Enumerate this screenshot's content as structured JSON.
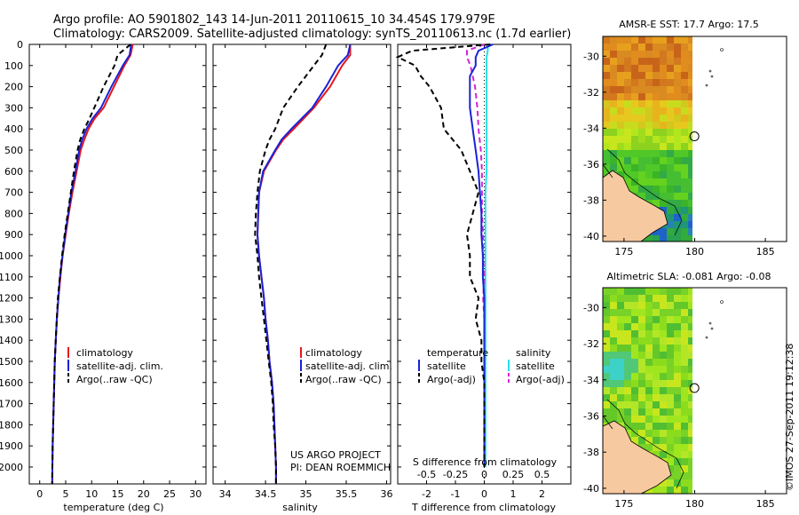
{
  "header": {
    "line1": "Argo profile: AO 5901802_143 14-Jun-2011 20110615_10 34.454S 179.979E",
    "line2": "Climatology: CARS2009. Satellite-adjusted climatology: synTS_20110613.nc (1.7d earlier)"
  },
  "colors": {
    "climatology": "#e8141c",
    "satellite": "#1a22d6",
    "argo": "#000000",
    "sal_satellite": "#22e0e8",
    "sal_argo": "#d424d4"
  },
  "credits": {
    "project": "US ARGO PROJECT",
    "pi": "PI: DEAN ROEMMICH",
    "stamp": "©IMOS 27-Sep-2011 19:12:38"
  },
  "legend1": [
    "climatology",
    "satellite-adj. clim.",
    "Argo(..raw -QC)"
  ],
  "legend3": {
    "temp_head": "temperature",
    "sal_head": "salinity",
    "satellite": "satellite",
    "argo": "Argo(-adj)"
  },
  "chart_data": [
    {
      "type": "line",
      "xlabel": "temperature (deg C)",
      "xticks": [
        "0",
        "5",
        "10",
        "15",
        "20",
        "25",
        "30"
      ],
      "xlim": [
        -2,
        32
      ],
      "ylim": [
        2080,
        0
      ],
      "yticks": [
        "0",
        "100",
        "200",
        "300",
        "400",
        "500",
        "600",
        "700",
        "800",
        "900",
        "1000",
        "1100",
        "1200",
        "1300",
        "1400",
        "1500",
        "1600",
        "1700",
        "1800",
        "1900",
        "2000"
      ],
      "depth": [
        0,
        50,
        100,
        200,
        300,
        350,
        400,
        450,
        500,
        600,
        700,
        800,
        900,
        1000,
        1100,
        1200,
        1300,
        1400,
        1500,
        1600,
        1700,
        1800,
        1900,
        2000,
        2080
      ],
      "series": [
        {
          "name": "climatology",
          "values": [
            17.9,
            17.5,
            16.3,
            14.3,
            12.3,
            10.6,
            9.4,
            8.6,
            7.9,
            7.1,
            6.3,
            5.6,
            5.0,
            4.4,
            4.0,
            3.6,
            3.3,
            3.1,
            2.9,
            2.8,
            2.7,
            2.6,
            2.5,
            2.45,
            2.4
          ]
        },
        {
          "name": "satellite-adj. clim.",
          "values": [
            17.6,
            17.3,
            16.0,
            13.8,
            11.8,
            10.2,
            9.0,
            8.2,
            7.6,
            6.9,
            6.1,
            5.5,
            4.9,
            4.4,
            3.9,
            3.6,
            3.3,
            3.1,
            2.9,
            2.8,
            2.7,
            2.6,
            2.5,
            2.45,
            2.4
          ]
        },
        {
          "name": "Argo(..raw -QC)",
          "values": [
            17.5,
            15.0,
            14.4,
            12.3,
            10.5,
            9.6,
            8.6,
            7.8,
            7.3,
            6.6,
            6.0,
            5.4,
            4.8,
            4.3,
            3.9,
            3.5,
            3.3,
            3.1,
            2.9,
            2.8,
            2.7,
            2.6,
            2.5,
            2.45,
            2.4
          ]
        }
      ]
    },
    {
      "type": "line",
      "xlabel": "salinity",
      "xticks": [
        "34",
        "34.5",
        "35",
        "35.5",
        "36"
      ],
      "xlim": [
        33.85,
        36.05
      ],
      "ylim": [
        2080,
        0
      ],
      "depth": [
        0,
        50,
        100,
        200,
        300,
        400,
        450,
        500,
        600,
        700,
        800,
        900,
        1000,
        1100,
        1200,
        1300,
        1400,
        1500,
        1600,
        1700,
        1800,
        1900,
        2000,
        2080
      ],
      "series": [
        {
          "name": "climatology",
          "values": [
            35.55,
            35.55,
            35.45,
            35.3,
            35.1,
            34.85,
            34.72,
            34.63,
            34.48,
            34.42,
            34.41,
            34.4,
            34.42,
            34.45,
            34.48,
            34.5,
            34.53,
            34.55,
            34.58,
            34.6,
            34.61,
            34.62,
            34.63,
            34.63
          ]
        },
        {
          "name": "satellite-adj. clim.",
          "values": [
            35.55,
            35.52,
            35.4,
            35.25,
            35.08,
            34.82,
            34.7,
            34.62,
            34.47,
            34.42,
            34.41,
            34.4,
            34.42,
            34.45,
            34.48,
            34.5,
            34.53,
            34.55,
            34.58,
            34.6,
            34.61,
            34.62,
            34.63,
            34.63
          ]
        },
        {
          "name": "Argo(..raw -QC)",
          "values": [
            35.25,
            35.2,
            35.1,
            34.9,
            34.72,
            34.62,
            34.55,
            34.5,
            34.43,
            34.4,
            34.38,
            34.37,
            34.4,
            34.42,
            34.45,
            34.48,
            34.51,
            34.54,
            34.57,
            34.59,
            34.6,
            34.62,
            34.63,
            34.63
          ]
        }
      ]
    },
    {
      "type": "line",
      "xlabel": "T difference from climatology",
      "xlabel_top": "S difference from climatology",
      "xticks": [
        "-2",
        "-1",
        "0",
        "1",
        "2"
      ],
      "xticks_top": [
        "-0.5",
        "-0.25",
        "0",
        "0.25",
        "0.5"
      ],
      "xlim": [
        -3,
        3
      ],
      "ylim": [
        2080,
        0
      ],
      "depth": [
        0,
        30,
        60,
        100,
        150,
        200,
        300,
        400,
        500,
        600,
        700,
        800,
        900,
        1000,
        1100,
        1200,
        1300,
        1400,
        1500,
        1600,
        1700,
        1800,
        1900,
        2000
      ],
      "series": [
        {
          "name": "temperature satellite",
          "values": [
            0.3,
            -0.2,
            -0.3,
            -0.3,
            -0.5,
            -0.5,
            -0.5,
            -0.4,
            -0.3,
            -0.2,
            -0.15,
            -0.1,
            -0.1,
            -0.05,
            -0.05,
            0,
            0,
            0,
            0,
            0,
            0,
            0,
            0,
            0
          ]
        },
        {
          "name": "temperature Argo(-adj)",
          "values": [
            0.2,
            -2.5,
            -3.0,
            -2.4,
            -2.2,
            -1.9,
            -1.5,
            -1.4,
            -0.8,
            -0.5,
            -0.2,
            -0.4,
            -0.6,
            -0.5,
            -0.5,
            -0.2,
            -0.3,
            -0.1,
            -0.1,
            0,
            0,
            0,
            0,
            0
          ]
        },
        {
          "name": "salinity satellite",
          "values": [
            0.03,
            0.03,
            0.02,
            0.02,
            0.02,
            0.02,
            0.02,
            0.02,
            0.02,
            0.02,
            0.01,
            0.01,
            0.01,
            0.01,
            0.01,
            0.01,
            0.01,
            0.01,
            0.01,
            0.01,
            0.01,
            0.01,
            0.01,
            0.01
          ]
        },
        {
          "name": "salinity Argo(-adj)",
          "values": [
            0,
            -0.15,
            -0.15,
            -0.12,
            -0.1,
            -0.08,
            -0.06,
            -0.05,
            -0.03,
            -0.02,
            -0.02,
            -0.02,
            -0.01,
            -0.01,
            0,
            -0.01,
            0,
            0,
            0,
            0,
            0,
            0,
            0,
            0
          ]
        }
      ]
    },
    {
      "type": "heatmap",
      "title": "AMSR-E SST: 17.7  Argo: 17.5",
      "xticks": [
        "175",
        "180",
        "185"
      ],
      "yticks": [
        "-30",
        "-32",
        "-34",
        "-36",
        "-38",
        "-40"
      ],
      "xlim": [
        173.5,
        186.5
      ],
      "ylim": [
        -40.3,
        -28.9
      ],
      "marker": {
        "lon": 179.979,
        "lat": -34.454
      }
    },
    {
      "type": "heatmap",
      "title": "Altimetric SLA: -0.081  Argo: -0.08",
      "xticks": [
        "175",
        "180",
        "185"
      ],
      "yticks": [
        "-30",
        "-32",
        "-34",
        "-36",
        "-38",
        "-40"
      ],
      "xlim": [
        173.5,
        186.5
      ],
      "ylim": [
        -40.3,
        -28.9
      ],
      "marker": {
        "lon": 179.979,
        "lat": -34.454
      }
    }
  ]
}
